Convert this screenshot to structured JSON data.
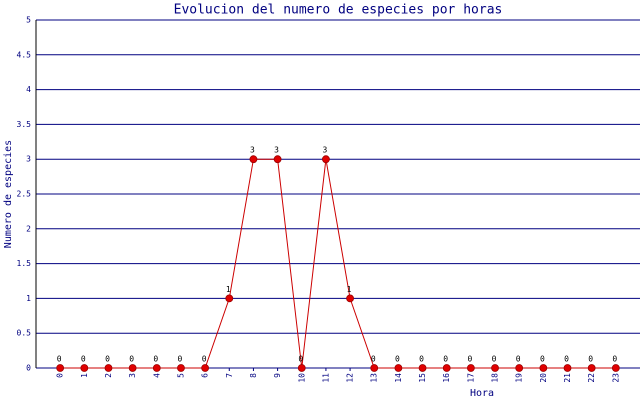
{
  "chart_data": {
    "type": "line",
    "title": "Evolucion del numero de especies por horas",
    "x_label": "Hora",
    "y_label": "Numero de especies",
    "categories": [
      "0",
      "1",
      "2",
      "3",
      "4",
      "5",
      "6",
      "7",
      "8",
      "9",
      "10",
      "11",
      "12",
      "13",
      "14",
      "15",
      "16",
      "17",
      "18",
      "19",
      "20",
      "21",
      "22",
      "23"
    ],
    "series": [
      {
        "name": "especies",
        "color": "#cc0000",
        "marker_color": "#e00000",
        "values": [
          0,
          0,
          0,
          0,
          0,
          0,
          0,
          1,
          3,
          3,
          0,
          3,
          1,
          0,
          0,
          0,
          0,
          0,
          0,
          0,
          0,
          0,
          0,
          0
        ]
      }
    ],
    "ylim": [
      0,
      5
    ],
    "yticks": [
      0,
      0.5,
      1,
      1.5,
      2,
      2.5,
      3,
      3.5,
      4,
      4.5,
      5
    ],
    "grid": true,
    "grid_color": "#000080"
  }
}
